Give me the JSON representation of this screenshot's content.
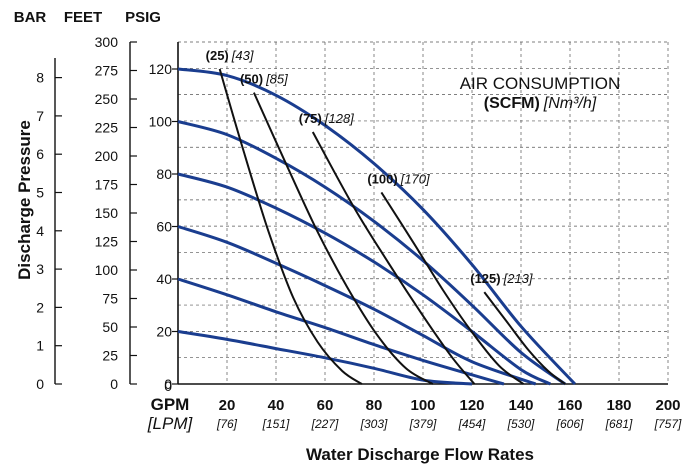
{
  "chart_data": {
    "type": "line",
    "title": "",
    "axis_units": {
      "bar": "BAR",
      "feet": "FEET",
      "psig": "PSIG"
    },
    "ylabel": "Discharge Pressure",
    "xlabel": "Water Discharge Flow Rates",
    "x_units": {
      "primary": "GPM",
      "secondary": "[LPM]"
    },
    "xlim": [
      0,
      200
    ],
    "ylim": [
      0,
      130
    ],
    "grid": true,
    "x_ticks": [
      {
        "gpm": "20",
        "lpm": "[76]"
      },
      {
        "gpm": "40",
        "lpm": "[151]"
      },
      {
        "gpm": "60",
        "lpm": "[227]"
      },
      {
        "gpm": "80",
        "lpm": "[303]"
      },
      {
        "gpm": "100",
        "lpm": "[379]"
      },
      {
        "gpm": "120",
        "lpm": "[454]"
      },
      {
        "gpm": "140",
        "lpm": "[530]"
      },
      {
        "gpm": "160",
        "lpm": "[606]"
      },
      {
        "gpm": "180",
        "lpm": "[681]"
      },
      {
        "gpm": "200",
        "lpm": "[757]"
      }
    ],
    "psig_ticks": [
      "0",
      "20",
      "40",
      "60",
      "80",
      "100",
      "120"
    ],
    "feet_ticks": [
      "0",
      "25",
      "50",
      "75",
      "100",
      "125",
      "150",
      "175",
      "200",
      "225",
      "250",
      "275",
      "300"
    ],
    "bar_ticks": [
      "0",
      "1",
      "2",
      "3",
      "4",
      "5",
      "6",
      "7",
      "8"
    ],
    "legend": {
      "title": "AIR CONSUMPTION",
      "bold": "(SCFM)",
      "italic": "[Nm³/h]"
    },
    "pressure_curves": [
      {
        "x": [
          0,
          20,
          40,
          60,
          80,
          100,
          120,
          140,
          162
        ],
        "y": [
          120,
          117.5,
          110,
          98.5,
          84,
          66.5,
          45.5,
          22,
          0
        ]
      },
      {
        "x": [
          0,
          20,
          40,
          60,
          80,
          100,
          120,
          140,
          158
        ],
        "y": [
          100,
          95,
          86,
          75,
          62,
          47,
          30,
          12,
          0
        ]
      },
      {
        "x": [
          0,
          20,
          40,
          60,
          80,
          100,
          120,
          140,
          152
        ],
        "y": [
          80,
          75,
          67,
          57.5,
          46.5,
          34,
          20,
          5.5,
          0
        ]
      },
      {
        "x": [
          0,
          20,
          40,
          60,
          80,
          100,
          120,
          146
        ],
        "y": [
          60,
          54,
          46,
          37.5,
          28.5,
          18.5,
          8.5,
          0
        ]
      },
      {
        "x": [
          0,
          20,
          40,
          60,
          80,
          100,
          120,
          133
        ],
        "y": [
          40,
          34,
          27.5,
          21.5,
          15,
          9,
          3.5,
          0
        ]
      },
      {
        "x": [
          0,
          20,
          40,
          60,
          80,
          100,
          120
        ],
        "y": [
          20,
          17,
          13.5,
          10,
          6,
          1.5,
          0
        ]
      }
    ],
    "air_curves": [
      {
        "label": "(25)",
        "label_i": "[43]",
        "x": [
          17,
          27,
          37,
          47,
          57,
          67,
          75
        ],
        "y": [
          120,
          88,
          58,
          33,
          16,
          5,
          0
        ]
      },
      {
        "label": "(50)",
        "label_i": "[85]",
        "x": [
          31,
          45,
          57,
          69,
          81,
          93,
          104
        ],
        "y": [
          111,
          82,
          58,
          37,
          19,
          6,
          0
        ]
      },
      {
        "label": "(75)",
        "label_i": "[128]",
        "x": [
          55,
          72,
          86,
          100,
          112,
          121
        ],
        "y": [
          96,
          67,
          46,
          26,
          10,
          0
        ]
      },
      {
        "label": "(100)",
        "label_i": "[170]",
        "x": [
          83,
          96,
          108,
          119,
          131,
          141
        ],
        "y": [
          73,
          54,
          36,
          21,
          7,
          0
        ]
      },
      {
        "label": "(125)",
        "label_i": "[213]",
        "x": [
          125,
          134,
          143,
          151,
          158
        ],
        "y": [
          35,
          24,
          13,
          5,
          0
        ]
      }
    ],
    "colors": {
      "pressure": "#1a3d8f",
      "air": "#111111",
      "grid": "#555555"
    }
  }
}
